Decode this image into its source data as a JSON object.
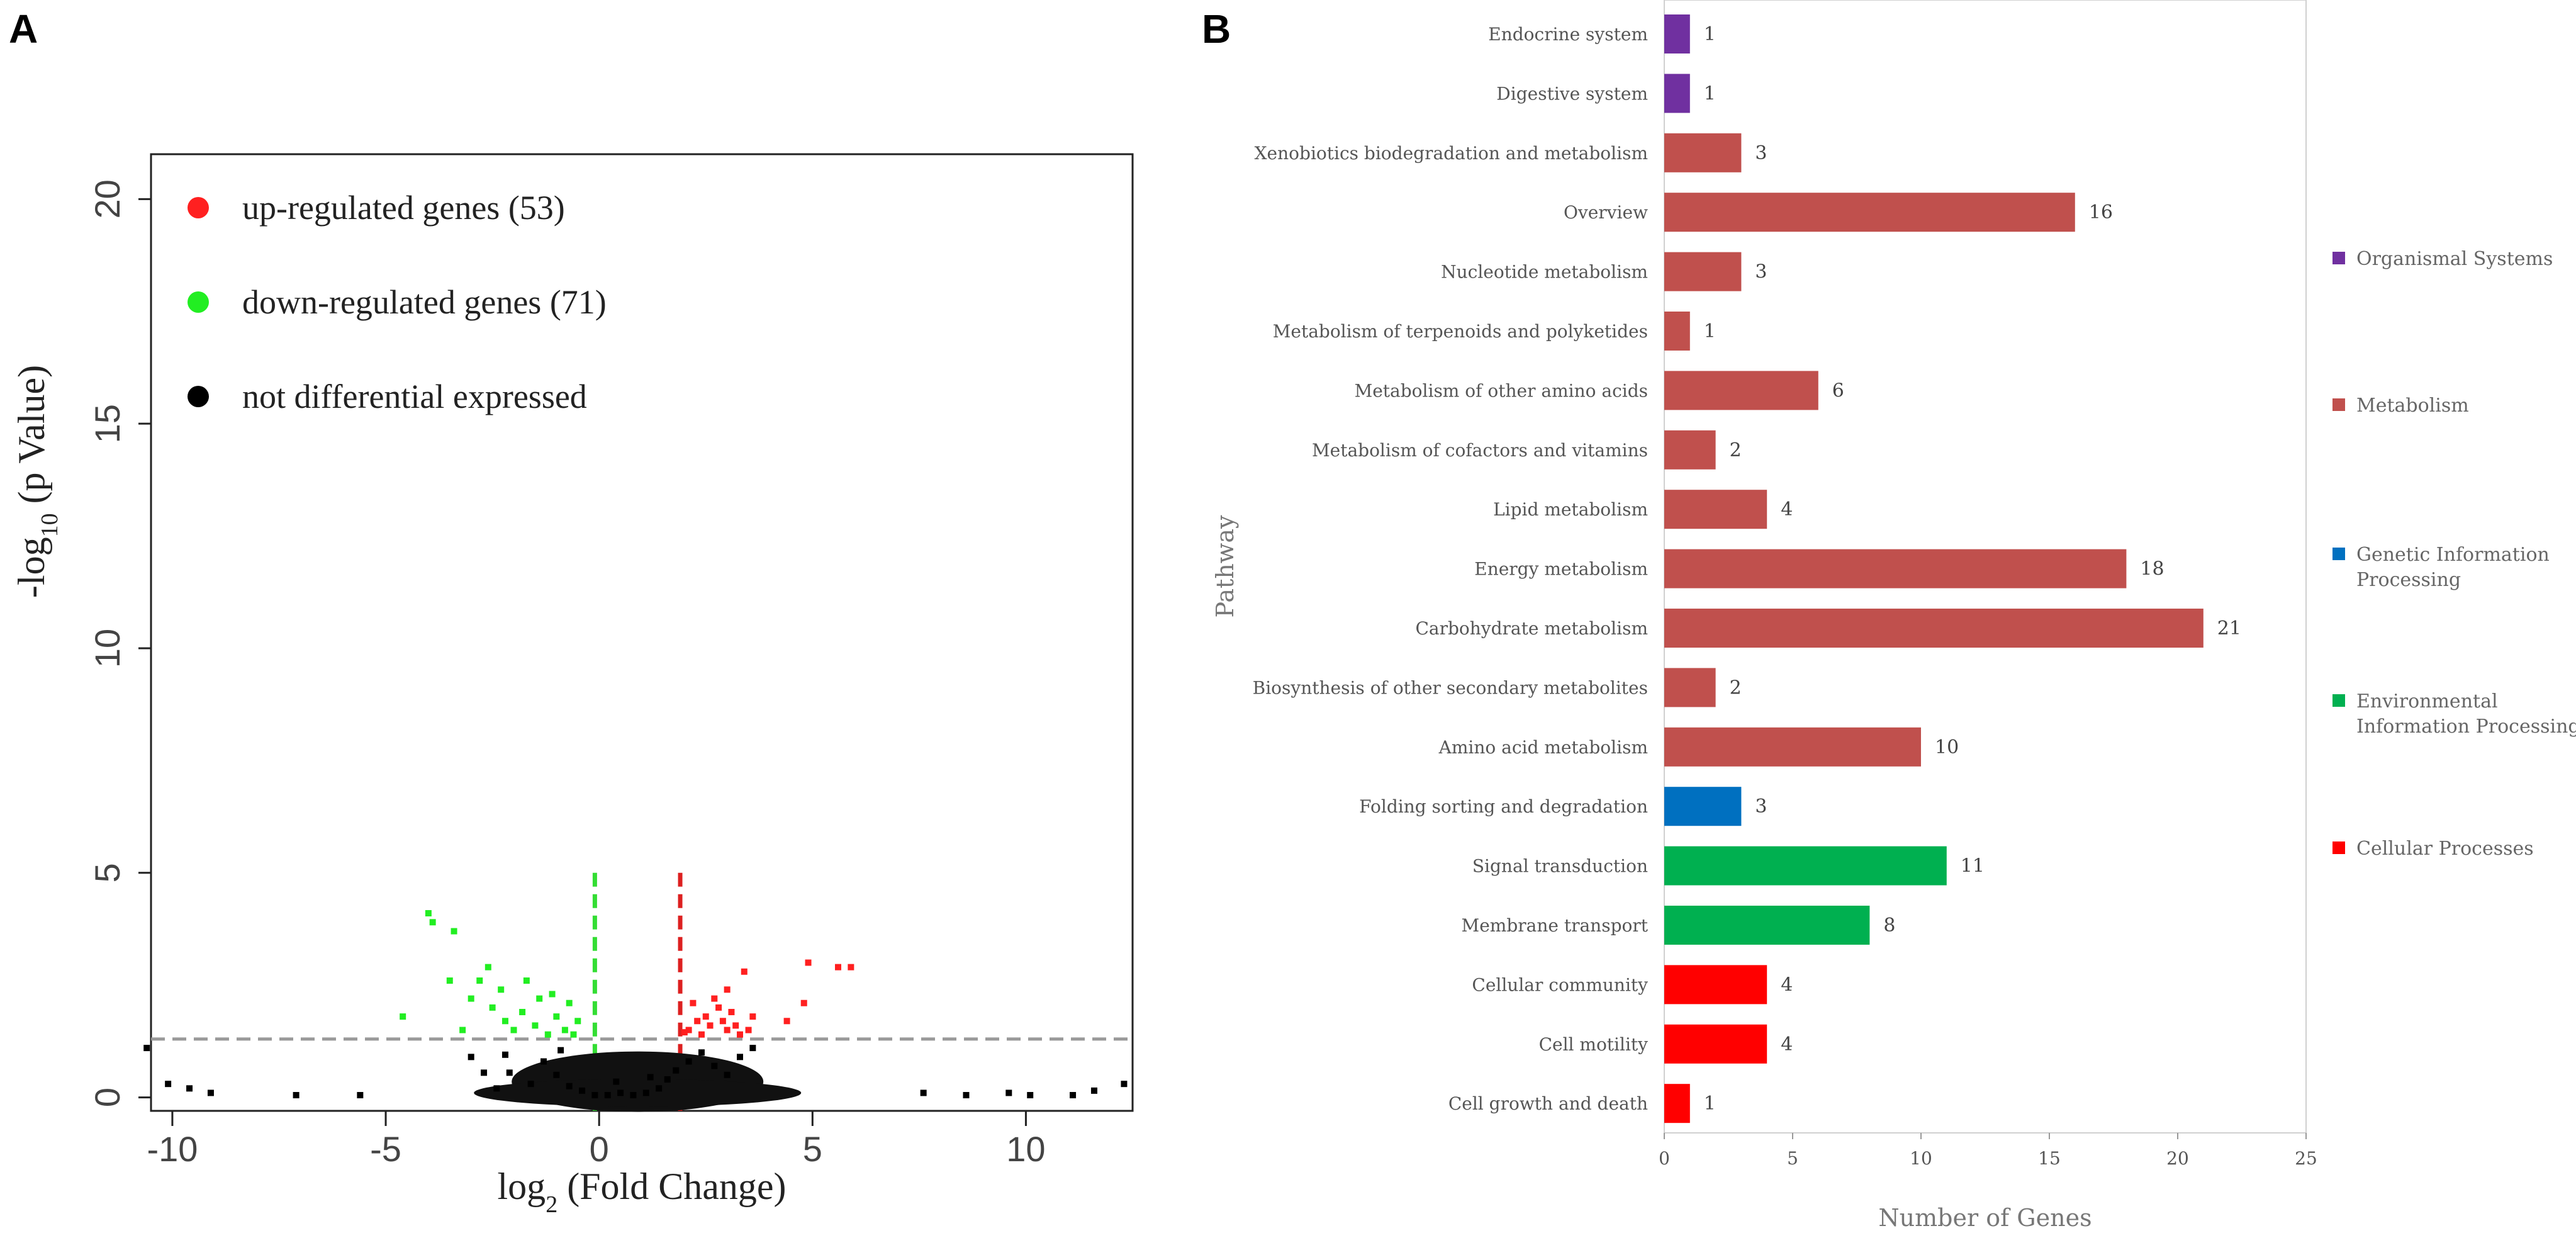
{
  "panels": {
    "left": "A",
    "right": "B"
  },
  "chart_data": [
    {
      "type": "scatter",
      "panel": "A",
      "xlabel": "log",
      "xlabel_sub": "2",
      "xlabel_rest": " (Fold Change)",
      "ylabel": "-log",
      "ylabel_sub": "10",
      "ylabel_rest": " (p Value)",
      "xlim": [
        -10.5,
        12.5
      ],
      "ylim": [
        -0.3,
        21
      ],
      "xticks": [
        {
          "v": -10,
          "label": "-10"
        },
        {
          "v": -5,
          "label": "-5"
        },
        {
          "v": 0,
          "label": "0"
        },
        {
          "v": 5,
          "label": "5"
        },
        {
          "v": 10,
          "label": "10"
        }
      ],
      "yticks": [
        {
          "v": 0,
          "label": "0"
        },
        {
          "v": 5,
          "label": "5"
        },
        {
          "v": 10,
          "label": "10"
        },
        {
          "v": 15,
          "label": "15"
        },
        {
          "v": 20,
          "label": "20"
        }
      ],
      "thresholds": {
        "x_down": -0.1,
        "x_up": 1.9,
        "y_p": 1.3
      },
      "legend": [
        {
          "label": "up-regulated genes (53)",
          "color": "#ff2020"
        },
        {
          "label": "down-regulated genes (71)",
          "color": "#22ee22"
        },
        {
          "label": "not differential expressed",
          "color": "#000000"
        }
      ],
      "series": [
        {
          "name": "up-regulated genes",
          "count": 53,
          "color": "#ff2020",
          "points": [
            [
              2.1,
              1.5
            ],
            [
              2.3,
              1.7
            ],
            [
              2.5,
              1.8
            ],
            [
              2.6,
              1.6
            ],
            [
              2.8,
              2.0
            ],
            [
              2.7,
              2.2
            ],
            [
              3.0,
              1.5
            ],
            [
              3.1,
              1.9
            ],
            [
              2.4,
              1.4
            ],
            [
              2.9,
              1.7
            ],
            [
              3.4,
              2.8
            ],
            [
              3.2,
              1.6
            ],
            [
              3.3,
              1.4
            ],
            [
              3.5,
              1.5
            ],
            [
              3.6,
              1.8
            ],
            [
              2.2,
              2.1
            ],
            [
              2.0,
              1.45
            ],
            [
              4.4,
              1.7
            ],
            [
              4.8,
              2.1
            ],
            [
              4.9,
              3.0
            ],
            [
              5.6,
              2.9
            ],
            [
              5.9,
              2.9
            ],
            [
              3.0,
              2.4
            ]
          ]
        },
        {
          "name": "down-regulated genes",
          "count": 71,
          "color": "#22ee22",
          "points": [
            [
              -4.0,
              4.1
            ],
            [
              -3.9,
              3.9
            ],
            [
              -3.4,
              3.7
            ],
            [
              -3.5,
              2.6
            ],
            [
              -3.0,
              2.2
            ],
            [
              -2.8,
              2.6
            ],
            [
              -2.5,
              2.0
            ],
            [
              -2.2,
              1.7
            ],
            [
              -2.0,
              1.5
            ],
            [
              -1.8,
              1.9
            ],
            [
              -1.5,
              1.6
            ],
            [
              -1.2,
              1.4
            ],
            [
              -1.0,
              1.8
            ],
            [
              -0.8,
              1.5
            ],
            [
              -0.6,
              1.4
            ],
            [
              -0.5,
              1.7
            ],
            [
              -1.4,
              2.2
            ],
            [
              -1.7,
              2.6
            ],
            [
              -2.3,
              2.4
            ],
            [
              -2.6,
              2.9
            ],
            [
              -3.2,
              1.5
            ],
            [
              -4.6,
              1.8
            ],
            [
              -0.7,
              2.1
            ],
            [
              -1.1,
              2.3
            ]
          ]
        },
        {
          "name": "not differential expressed",
          "count": null,
          "color": "#000000",
          "points": [
            [
              -10.6,
              1.1
            ],
            [
              -10.1,
              0.3
            ],
            [
              -9.6,
              0.2
            ],
            [
              -9.1,
              0.1
            ],
            [
              -7.1,
              0.05
            ],
            [
              -5.6,
              0.05
            ],
            [
              -3.0,
              0.9
            ],
            [
              -2.7,
              0.55
            ],
            [
              -2.4,
              0.2
            ],
            [
              -2.1,
              0.55
            ],
            [
              -1.6,
              0.3
            ],
            [
              -1.3,
              0.8
            ],
            [
              -1.0,
              0.5
            ],
            [
              -0.7,
              0.25
            ],
            [
              -0.4,
              0.15
            ],
            [
              -0.1,
              0.05
            ],
            [
              0.2,
              0.05
            ],
            [
              0.5,
              0.1
            ],
            [
              0.8,
              0.05
            ],
            [
              1.1,
              0.1
            ],
            [
              1.4,
              0.2
            ],
            [
              1.6,
              0.4
            ],
            [
              1.8,
              0.6
            ],
            [
              2.1,
              0.8
            ],
            [
              2.4,
              1.0
            ],
            [
              2.7,
              0.7
            ],
            [
              3.0,
              0.5
            ],
            [
              3.3,
              0.9
            ],
            [
              3.6,
              1.1
            ],
            [
              7.6,
              0.1
            ],
            [
              8.6,
              0.05
            ],
            [
              9.6,
              0.1
            ],
            [
              10.1,
              0.05
            ],
            [
              11.1,
              0.05
            ],
            [
              11.6,
              0.15
            ],
            [
              12.3,
              0.3
            ],
            [
              -2.2,
              0.95
            ],
            [
              -0.9,
              1.05
            ],
            [
              0.4,
              0.35
            ],
            [
              1.2,
              0.45
            ]
          ]
        }
      ]
    },
    {
      "type": "bar",
      "orientation": "horizontal",
      "panel": "B",
      "ylabel": "Pathway",
      "xlabel": "Number of Genes",
      "xlim": [
        0,
        25
      ],
      "xticks": [
        0,
        5,
        10,
        15,
        20,
        25
      ],
      "categories": [
        {
          "label": "Endocrine system",
          "value": 1,
          "group": "Organismal Systems"
        },
        {
          "label": "Digestive system",
          "value": 1,
          "group": "Organismal Systems"
        },
        {
          "label": "Xenobiotics biodegradation and metabolism",
          "value": 3,
          "group": "Metabolism"
        },
        {
          "label": "Overview",
          "value": 16,
          "group": "Metabolism"
        },
        {
          "label": "Nucleotide metabolism",
          "value": 3,
          "group": "Metabolism"
        },
        {
          "label": "Metabolism of terpenoids and polyketides",
          "value": 1,
          "group": "Metabolism"
        },
        {
          "label": "Metabolism of other amino acids",
          "value": 6,
          "group": "Metabolism"
        },
        {
          "label": "Metabolism of cofactors and vitamins",
          "value": 2,
          "group": "Metabolism"
        },
        {
          "label": "Lipid metabolism",
          "value": 4,
          "group": "Metabolism"
        },
        {
          "label": "Energy metabolism",
          "value": 18,
          "group": "Metabolism"
        },
        {
          "label": "Carbohydrate metabolism",
          "value": 21,
          "group": "Metabolism"
        },
        {
          "label": "Biosynthesis of other secondary metabolites",
          "value": 2,
          "group": "Metabolism"
        },
        {
          "label": "Amino acid metabolism",
          "value": 10,
          "group": "Metabolism"
        },
        {
          "label": "Folding sorting and degradation",
          "value": 3,
          "group": "Genetic Information Processing"
        },
        {
          "label": "Signal transduction",
          "value": 11,
          "group": "Environmental Information Processing"
        },
        {
          "label": "Membrane transport",
          "value": 8,
          "group": "Environmental Information Processing"
        },
        {
          "label": "Cellular community",
          "value": 4,
          "group": "Cellular Processes"
        },
        {
          "label": "Cell motility",
          "value": 4,
          "group": "Cellular Processes"
        },
        {
          "label": "Cell growth and death",
          "value": 1,
          "group": "Cellular Processes"
        }
      ],
      "legend": [
        {
          "group": "Organismal Systems",
          "lines": [
            "Organismal Systems"
          ],
          "color": "#7030a0"
        },
        {
          "group": "Metabolism",
          "lines": [
            "Metabolism"
          ],
          "color": "#c0504d"
        },
        {
          "group": "Genetic Information Processing",
          "lines": [
            "Genetic Information",
            "Processing"
          ],
          "color": "#0070c0"
        },
        {
          "group": "Environmental Information Processing",
          "lines": [
            "Environmental",
            "Information Processing"
          ],
          "color": "#00b050"
        },
        {
          "group": "Cellular Processes",
          "lines": [
            "Cellular Processes"
          ],
          "color": "#ff0000"
        }
      ]
    }
  ]
}
